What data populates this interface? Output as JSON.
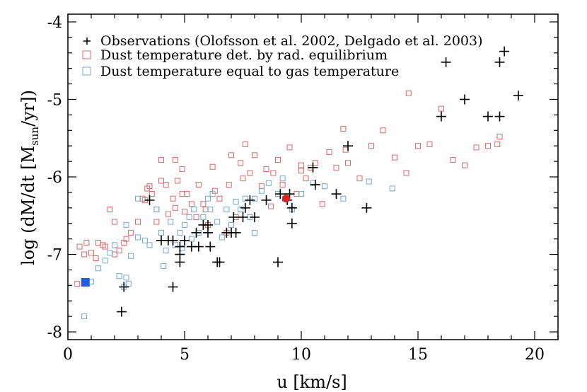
{
  "chart_data": {
    "type": "scatter",
    "xlabel": "u [km/s]",
    "ylabel_main": "log (dM/dt [M",
    "ylabel_sub": "sun",
    "ylabel_tail": "/yr])",
    "xlim": [
      0,
      21
    ],
    "ylim": [
      -8.1,
      -3.9
    ],
    "xticks": [
      0,
      5,
      10,
      15,
      20
    ],
    "yticks": [
      -8,
      -7,
      -6,
      -5,
      -4
    ],
    "xtick_labels": [
      "0",
      "5",
      "10",
      "15",
      "20"
    ],
    "ytick_labels": [
      "-8",
      "-7",
      "-6",
      "-5",
      "-4"
    ],
    "legend_position": "top-left",
    "series": [
      {
        "name": "Observations (Olofsson et al. 2002, Delgado et al. 2003)",
        "marker": "plus",
        "color": "#000000",
        "x": [
          3.5,
          4.0,
          4.3,
          4.5,
          4.8,
          4.8,
          4.8,
          5.0,
          5.3,
          5.5,
          5.6,
          5.8,
          6.0,
          6.0,
          6.1,
          6.4,
          6.5,
          6.8,
          7.0,
          7.1,
          7.2,
          7.5,
          7.6,
          7.8,
          8.0,
          8.5,
          9.0,
          9.1,
          9.4,
          9.6,
          9.6,
          9.5,
          10.5,
          10.6,
          11.5,
          12.0,
          12.8,
          16.0,
          16.2,
          17.0,
          18.0,
          18.5,
          18.5,
          18.7,
          19.3,
          2.3,
          2.4,
          4.5
        ],
        "y": [
          -6.3,
          -6.82,
          -6.82,
          -6.82,
          -6.9,
          -7.0,
          -7.1,
          -6.82,
          -6.9,
          -6.72,
          -6.9,
          -6.62,
          -6.62,
          -6.72,
          -6.9,
          -7.1,
          -7.1,
          -6.72,
          -6.72,
          -6.52,
          -6.72,
          -6.52,
          -6.4,
          -6.3,
          -6.52,
          -6.3,
          -7.1,
          -6.22,
          -6.3,
          -6.4,
          -6.6,
          -6.22,
          -5.88,
          -6.1,
          -6.22,
          -5.6,
          -6.4,
          -5.22,
          -4.52,
          -5.0,
          -5.22,
          -4.52,
          -5.22,
          -4.38,
          -4.95,
          -7.74,
          -7.42,
          -7.42
        ]
      },
      {
        "name": "Dust temperature det. by rad. equilibrium",
        "marker": "open-square",
        "color": "#e06666",
        "x": [
          0.4,
          0.5,
          0.7,
          0.8,
          1.0,
          1.2,
          1.5,
          1.6,
          1.8,
          2.0,
          2.2,
          2.4,
          2.5,
          2.7,
          3.0,
          3.2,
          3.3,
          3.5,
          3.6,
          3.8,
          4.0,
          4.0,
          4.2,
          4.3,
          4.5,
          4.6,
          4.7,
          4.9,
          5.0,
          5.1,
          5.3,
          5.5,
          5.6,
          5.8,
          6.0,
          6.2,
          6.5,
          6.8,
          6.9,
          7.0,
          7.2,
          7.4,
          7.6,
          7.8,
          8.0,
          8.3,
          8.5,
          8.8,
          9.0,
          9.2,
          9.5,
          9.8,
          10.0,
          10.2,
          10.4,
          10.6,
          10.9,
          11.2,
          11.5,
          11.8,
          12.0,
          12.5,
          13.0,
          13.5,
          14.0,
          14.5,
          15.0,
          15.5,
          16.0,
          16.5,
          17.0,
          17.5,
          18.0,
          18.5,
          1.3,
          2.0,
          3.8,
          4.6,
          5.9,
          7.5,
          10.0,
          14.6,
          18.4,
          3.4,
          4.9,
          6.3,
          8.7,
          11.9
        ],
        "y": [
          -7.38,
          -6.9,
          -7.0,
          -6.85,
          -6.98,
          -7.05,
          -6.88,
          -6.9,
          -6.42,
          -6.58,
          -6.95,
          -6.85,
          -6.8,
          -6.72,
          -6.58,
          -6.28,
          -6.3,
          -6.12,
          -6.22,
          -6.42,
          -5.78,
          -6.05,
          -6.1,
          -6.48,
          -6.28,
          -5.78,
          -6.05,
          -5.9,
          -6.45,
          -6.22,
          -6.35,
          -6.52,
          -6.1,
          -6.35,
          -6.62,
          -5.87,
          -6.28,
          -6.72,
          -6.1,
          -5.72,
          -6.52,
          -5.82,
          -5.58,
          -5.95,
          -5.72,
          -6.12,
          -5.9,
          -5.95,
          -5.78,
          -6.1,
          -5.62,
          -6.22,
          -5.92,
          -6.02,
          -5.88,
          -5.82,
          -6.35,
          -5.68,
          -5.88,
          -5.38,
          -5.82,
          -6.02,
          -5.6,
          -5.4,
          -5.75,
          -5.95,
          -5.6,
          -5.58,
          -5.12,
          -5.78,
          -5.85,
          -5.62,
          -5.6,
          -5.48,
          -6.85,
          -7.0,
          -6.58,
          -6.4,
          -6.42,
          -6.02,
          -5.85,
          -4.92,
          -5.58,
          -6.15,
          -6.22,
          -6.18,
          -6.38,
          -5.65
        ]
      },
      {
        "name": "Dust temperature equal to gas temperature",
        "marker": "open-square",
        "color": "#6fa8dc",
        "x": [
          0.7,
          1.0,
          1.3,
          1.6,
          1.8,
          2.0,
          2.2,
          2.4,
          2.5,
          2.7,
          3.0,
          3.3,
          3.5,
          3.8,
          4.0,
          4.2,
          4.4,
          4.6,
          4.8,
          5.0,
          5.2,
          5.4,
          5.6,
          5.8,
          6.0,
          6.2,
          6.4,
          6.6,
          6.8,
          7.0,
          7.2,
          7.4,
          7.6,
          7.8,
          8.0,
          8.3,
          8.6,
          9.0,
          9.3,
          9.6,
          10.0,
          10.5,
          11.0,
          11.8,
          12.9,
          13.9,
          0.7,
          2.5,
          2.6,
          3.0,
          4.1,
          4.9,
          5.3,
          6.1,
          7.0,
          8.0,
          9.2
        ],
        "y": [
          -7.8,
          -7.35,
          -7.18,
          -7.08,
          -6.98,
          -6.88,
          -7.28,
          -7.42,
          -6.62,
          -7.02,
          -6.78,
          -6.82,
          -6.88,
          -6.42,
          -6.72,
          -6.95,
          -6.58,
          -6.88,
          -6.72,
          -6.62,
          -6.52,
          -6.42,
          -6.72,
          -6.52,
          -6.28,
          -6.22,
          -6.58,
          -6.78,
          -6.42,
          -6.62,
          -6.32,
          -6.42,
          -6.28,
          -6.52,
          -6.28,
          -6.18,
          -6.08,
          -6.22,
          -6.28,
          -6.42,
          -6.22,
          -6.08,
          -6.12,
          -6.28,
          -6.06,
          -6.15,
          -7.37,
          -7.3,
          -7.38,
          -6.28,
          -7.15,
          -6.92,
          -6.8,
          -6.42,
          -6.62,
          -6.72,
          -6.02
        ]
      },
      {
        "marker": "filled-square",
        "color": "#1f5fd8",
        "x": [
          0.75
        ],
        "y": [
          -7.36
        ]
      },
      {
        "marker": "filled-circle",
        "color": "#e02020",
        "x": [
          9.35
        ],
        "y": [
          -6.28
        ]
      }
    ]
  }
}
